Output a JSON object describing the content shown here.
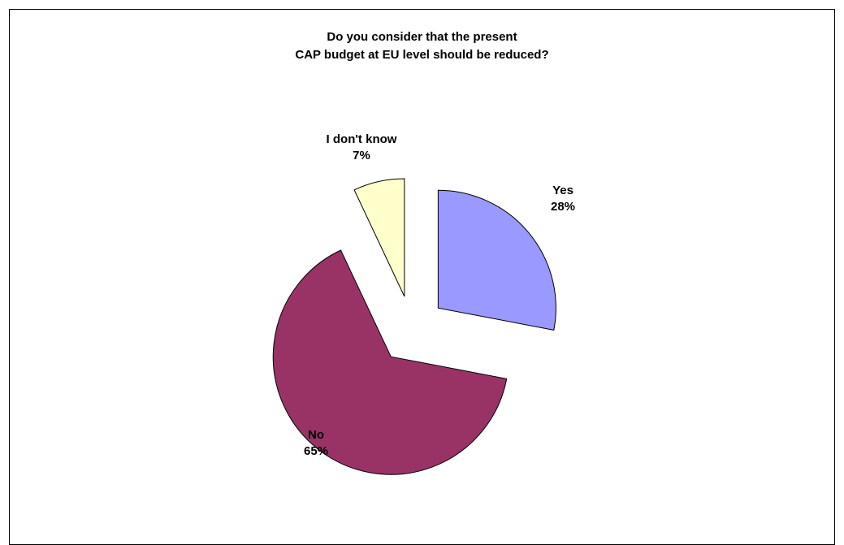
{
  "chart_data": {
    "type": "pie",
    "title_lines": [
      "Do you consider that the present",
      "CAP budget at EU level should be reduced?"
    ],
    "slices": [
      {
        "label": "Yes",
        "value": 28,
        "display": "28%",
        "color": "#9999FF",
        "exploded": true
      },
      {
        "label": "No",
        "value": 65,
        "display": "65%",
        "color": "#993366",
        "exploded": true
      },
      {
        "label": "I don't know",
        "value": 7,
        "display": "7%",
        "color": "#FFFFCC",
        "exploded": true
      }
    ],
    "legend": "none",
    "start_direction": "12 o'clock, clockwise"
  }
}
